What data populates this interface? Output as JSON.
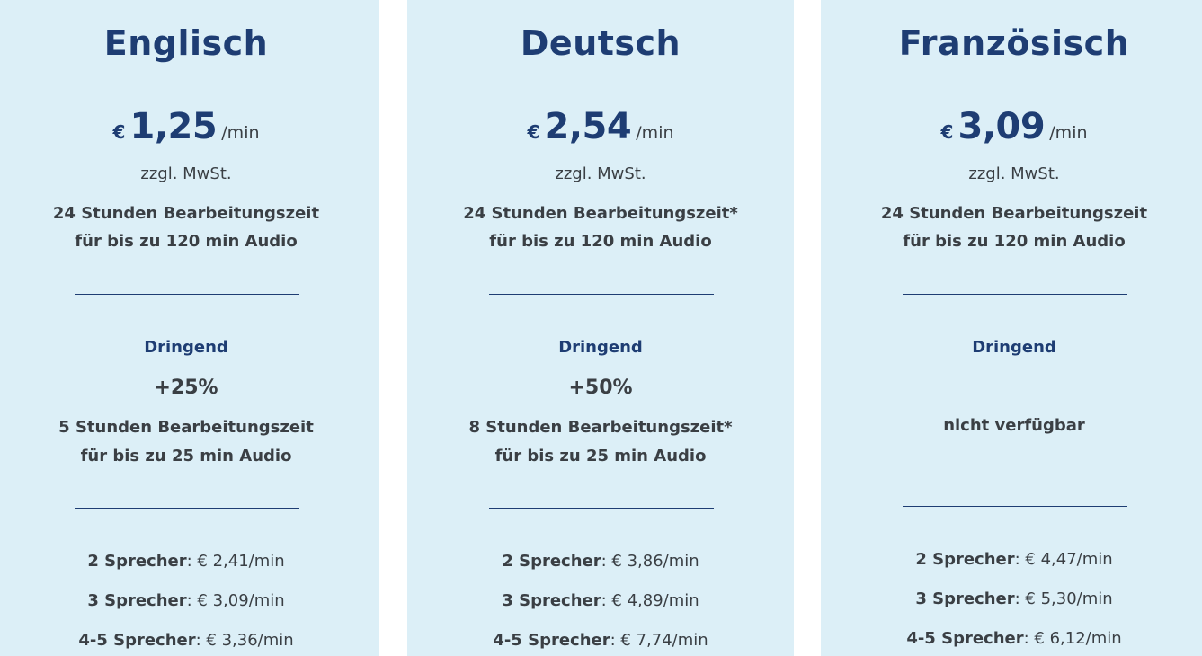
{
  "cards": [
    {
      "title": "Englisch",
      "currency": "€",
      "price": "1,25",
      "unit": "/min",
      "vat": "zzgl. MwSt.",
      "standard_line1": "24 Stunden Bearbeitungszeit",
      "standard_line2": "für bis zu 120 min Audio",
      "urgent_label": "Dringend",
      "urgent_surcharge": "+25%",
      "urgent_line1": "5 Stunden Bearbeitungszeit",
      "urgent_line2": "für bis zu 25 min Audio",
      "speakers": [
        {
          "label": "2 Sprecher",
          "price": "€ 2,41/min"
        },
        {
          "label": "3 Sprecher",
          "price": "€ 3,09/min"
        },
        {
          "label": "4-5 Sprecher",
          "price": "€ 3,36/min"
        }
      ]
    },
    {
      "title": "Deutsch",
      "currency": "€",
      "price": "2,54",
      "unit": "/min",
      "vat": "zzgl. MwSt.",
      "standard_line1": "24 Stunden Bearbeitungszeit*",
      "standard_line2": "für bis zu 120 min Audio",
      "urgent_label": "Dringend",
      "urgent_surcharge": "+50%",
      "urgent_line1": "8 Stunden Bearbeitungszeit*",
      "urgent_line2": "für bis zu 25 min Audio",
      "speakers": [
        {
          "label": "2 Sprecher",
          "price": "€ 3,86/min"
        },
        {
          "label": "3 Sprecher",
          "price": "€ 4,89/min"
        },
        {
          "label": "4-5 Sprecher",
          "price": "€ 7,74/min"
        }
      ]
    },
    {
      "title": "Französisch",
      "currency": "€",
      "price": "3,09",
      "unit": "/min",
      "vat": "zzgl. MwSt.",
      "standard_line1": "24 Stunden Bearbeitungszeit",
      "standard_line2": "für bis zu 120 min Audio",
      "urgent_label": "Dringend",
      "urgent_unavailable": "nicht verfügbar",
      "speakers": [
        {
          "label": "2 Sprecher",
          "price": "€ 4,47/min"
        },
        {
          "label": "3 Sprecher",
          "price": "€ 5,30/min"
        },
        {
          "label": "4-5 Sprecher",
          "price": "€ 6,12/min"
        }
      ]
    }
  ],
  "speaker_separator": ": ",
  "colors": {
    "card_background": "#dceff7",
    "accent": "#1e3d73",
    "text": "#3a3f44"
  }
}
